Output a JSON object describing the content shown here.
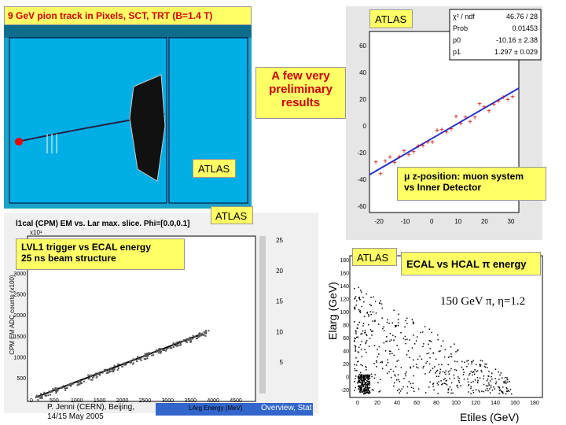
{
  "event_display": {
    "title": "9 GeV pion track in Pixels, SCT, TRT (B=1.4 T)"
  },
  "labels": [
    "ATLAS",
    "ATLAS",
    "ATLAS",
    "ATLAS"
  ],
  "headline": [
    "A few very",
    "preliminary",
    "results"
  ],
  "muon_plot": {
    "caption": [
      "μ  z-position: muon system",
      "vs Inner Detector"
    ],
    "stats": [
      [
        "χ² / ndf",
        "46.76 / 28"
      ],
      [
        "Prob",
        "0.01453"
      ],
      [
        "p0",
        "-10.16 ± 2.38"
      ],
      [
        "p1",
        "1.297 ± 0.029"
      ]
    ],
    "yticks": [
      "60",
      "40",
      "20",
      "0",
      "-20",
      "-40",
      "-60"
    ],
    "xticks": [
      "-20",
      "-10",
      "0",
      "10",
      "20",
      "30"
    ]
  },
  "trigger_plot": {
    "caption": [
      "LVL1 trigger vs ECAL energy",
      "25 ns beam structure"
    ],
    "title": "l1cal (CPM) EM vs. Lar max. slice. Phi=[0.0,0.1]",
    "scale": "x10¹",
    "ylabel": "CPM EM ADC counts (x100)",
    "xlabel": "LArg Energy (MeV)",
    "yticks": [
      "3000",
      "2500",
      "2000",
      "1500",
      "1000",
      "500"
    ],
    "xticks": [
      "0",
      "500",
      "1000",
      "1500",
      "2000",
      "2500",
      "3000",
      "3500",
      "4000",
      "4500"
    ],
    "colorbar": [
      "25",
      "20",
      "15",
      "10",
      "5"
    ]
  },
  "energy_plot": {
    "caption": "ECAL vs HCAL π energy",
    "beam": "150 GeV  π, η=1.2",
    "ylabel": "Elarg (GeV)",
    "xlabel": "Etiles (GeV)",
    "yticks": [
      "180",
      "160",
      "140",
      "120",
      "100",
      "80",
      "60",
      "40",
      "20",
      "0",
      "-20"
    ],
    "xticks": [
      "0",
      "20",
      "40",
      "60",
      "80",
      "100",
      "120",
      "140",
      "160",
      "180"
    ]
  },
  "footer": {
    "author": [
      "P. Jenni (CERN), Beijing,",
      "14/15 May 2005"
    ],
    "topic": "Overview, Stat"
  }
}
